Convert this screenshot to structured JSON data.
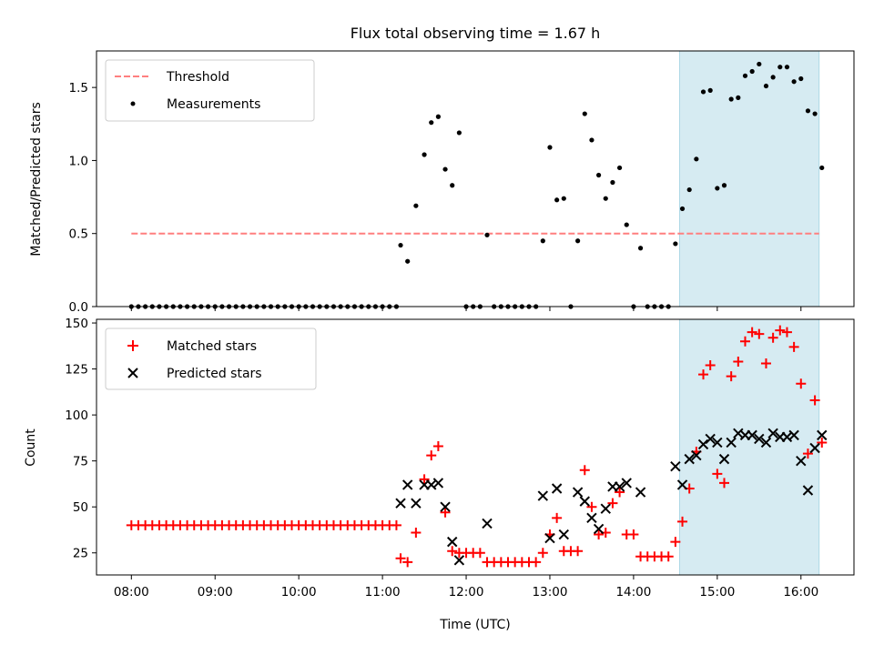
{
  "chart_data": [
    {
      "type": "scatter",
      "title": "Flux total observing time = 1.67 h",
      "ylabel": "Matched/Predicted stars",
      "ylim": [
        0,
        1.75
      ],
      "xlim": [
        "07:35",
        "16:38"
      ],
      "yticks": [
        "0.0",
        "0.5",
        "1.0",
        "1.5"
      ],
      "legend_position": "upper left",
      "highlight_span": {
        "start": "14:33",
        "end": "16:13",
        "color": "#add8e6"
      },
      "threshold": {
        "name": "Threshold",
        "value": 0.5,
        "x_range": [
          "08:00",
          "16:13"
        ],
        "color": "#ff7f7f",
        "style": "dashed"
      },
      "series": [
        {
          "name": "Measurements",
          "color": "#000000",
          "marker": "dot",
          "points": [
            [
              "08:00",
              0
            ],
            [
              "08:05",
              0
            ],
            [
              "08:10",
              0
            ],
            [
              "08:15",
              0
            ],
            [
              "08:20",
              0
            ],
            [
              "08:25",
              0
            ],
            [
              "08:30",
              0
            ],
            [
              "08:35",
              0
            ],
            [
              "08:40",
              0
            ],
            [
              "08:45",
              0
            ],
            [
              "08:50",
              0
            ],
            [
              "08:55",
              0
            ],
            [
              "09:00",
              0
            ],
            [
              "09:05",
              0
            ],
            [
              "09:10",
              0
            ],
            [
              "09:15",
              0
            ],
            [
              "09:20",
              0
            ],
            [
              "09:25",
              0
            ],
            [
              "09:30",
              0
            ],
            [
              "09:35",
              0
            ],
            [
              "09:40",
              0
            ],
            [
              "09:45",
              0
            ],
            [
              "09:50",
              0
            ],
            [
              "09:55",
              0
            ],
            [
              "10:00",
              0
            ],
            [
              "10:05",
              0
            ],
            [
              "10:10",
              0
            ],
            [
              "10:15",
              0
            ],
            [
              "10:20",
              0
            ],
            [
              "10:25",
              0
            ],
            [
              "10:30",
              0
            ],
            [
              "10:35",
              0
            ],
            [
              "10:40",
              0
            ],
            [
              "10:45",
              0
            ],
            [
              "10:50",
              0
            ],
            [
              "10:55",
              0
            ],
            [
              "11:00",
              0
            ],
            [
              "11:05",
              0
            ],
            [
              "11:10",
              0
            ],
            [
              "11:13",
              0.42
            ],
            [
              "11:18",
              0.31
            ],
            [
              "11:24",
              0.69
            ],
            [
              "11:30",
              1.04
            ],
            [
              "11:35",
              1.26
            ],
            [
              "11:40",
              1.3
            ],
            [
              "11:45",
              0.94
            ],
            [
              "11:50",
              0.83
            ],
            [
              "11:55",
              1.19
            ],
            [
              "12:00",
              0
            ],
            [
              "12:05",
              0
            ],
            [
              "12:10",
              0
            ],
            [
              "12:15",
              0.49
            ],
            [
              "12:20",
              0
            ],
            [
              "12:25",
              0
            ],
            [
              "12:30",
              0
            ],
            [
              "12:35",
              0
            ],
            [
              "12:40",
              0
            ],
            [
              "12:45",
              0
            ],
            [
              "12:50",
              0
            ],
            [
              "12:55",
              0.45
            ],
            [
              "13:00",
              1.09
            ],
            [
              "13:05",
              0.73
            ],
            [
              "13:10",
              0.74
            ],
            [
              "13:15",
              0
            ],
            [
              "13:20",
              0.45
            ],
            [
              "13:25",
              1.32
            ],
            [
              "13:30",
              1.14
            ],
            [
              "13:35",
              0.9
            ],
            [
              "13:40",
              0.74
            ],
            [
              "13:45",
              0.85
            ],
            [
              "13:50",
              0.95
            ],
            [
              "13:55",
              0.56
            ],
            [
              "14:00",
              0
            ],
            [
              "14:05",
              0.4
            ],
            [
              "14:10",
              0
            ],
            [
              "14:15",
              0
            ],
            [
              "14:20",
              0
            ],
            [
              "14:25",
              0
            ],
            [
              "14:30",
              0.43
            ],
            [
              "14:35",
              0.67
            ],
            [
              "14:40",
              0.8
            ],
            [
              "14:45",
              1.01
            ],
            [
              "14:50",
              1.47
            ],
            [
              "14:55",
              1.48
            ],
            [
              "15:00",
              0.81
            ],
            [
              "15:05",
              0.83
            ],
            [
              "15:10",
              1.42
            ],
            [
              "15:15",
              1.43
            ],
            [
              "15:20",
              1.58
            ],
            [
              "15:25",
              1.61
            ],
            [
              "15:30",
              1.66
            ],
            [
              "15:35",
              1.51
            ],
            [
              "15:40",
              1.57
            ],
            [
              "15:45",
              1.64
            ],
            [
              "15:50",
              1.64
            ],
            [
              "15:55",
              1.54
            ],
            [
              "16:00",
              1.56
            ],
            [
              "16:05",
              1.34
            ],
            [
              "16:10",
              1.32
            ],
            [
              "16:15",
              0.95
            ]
          ]
        }
      ]
    },
    {
      "type": "scatter",
      "xlabel": "Time (UTC)",
      "ylabel": "Count",
      "ylim": [
        13,
        152
      ],
      "xlim": [
        "07:35",
        "16:38"
      ],
      "xticks": [
        "08:00",
        "09:00",
        "10:00",
        "11:00",
        "12:00",
        "13:00",
        "14:00",
        "15:00",
        "16:00"
      ],
      "yticks": [
        "25",
        "50",
        "75",
        "100",
        "125",
        "150"
      ],
      "legend_position": "upper left",
      "highlight_span": {
        "start": "14:33",
        "end": "16:13",
        "color": "#add8e6"
      },
      "series": [
        {
          "name": "Matched stars",
          "color": "#ff0000",
          "marker": "plus",
          "points": [
            [
              "08:00",
              40
            ],
            [
              "08:05",
              40
            ],
            [
              "08:10",
              40
            ],
            [
              "08:15",
              40
            ],
            [
              "08:20",
              40
            ],
            [
              "08:25",
              40
            ],
            [
              "08:30",
              40
            ],
            [
              "08:35",
              40
            ],
            [
              "08:40",
              40
            ],
            [
              "08:45",
              40
            ],
            [
              "08:50",
              40
            ],
            [
              "08:55",
              40
            ],
            [
              "09:00",
              40
            ],
            [
              "09:05",
              40
            ],
            [
              "09:10",
              40
            ],
            [
              "09:15",
              40
            ],
            [
              "09:20",
              40
            ],
            [
              "09:25",
              40
            ],
            [
              "09:30",
              40
            ],
            [
              "09:35",
              40
            ],
            [
              "09:40",
              40
            ],
            [
              "09:45",
              40
            ],
            [
              "09:50",
              40
            ],
            [
              "09:55",
              40
            ],
            [
              "10:00",
              40
            ],
            [
              "10:05",
              40
            ],
            [
              "10:10",
              40
            ],
            [
              "10:15",
              40
            ],
            [
              "10:20",
              40
            ],
            [
              "10:25",
              40
            ],
            [
              "10:30",
              40
            ],
            [
              "10:35",
              40
            ],
            [
              "10:40",
              40
            ],
            [
              "10:45",
              40
            ],
            [
              "10:50",
              40
            ],
            [
              "10:55",
              40
            ],
            [
              "11:00",
              40
            ],
            [
              "11:05",
              40
            ],
            [
              "11:10",
              40
            ],
            [
              "11:13",
              22
            ],
            [
              "11:18",
              20
            ],
            [
              "11:24",
              36
            ],
            [
              "11:30",
              65
            ],
            [
              "11:35",
              78
            ],
            [
              "11:40",
              83
            ],
            [
              "11:45",
              47
            ],
            [
              "11:50",
              26
            ],
            [
              "11:55",
              25
            ],
            [
              "12:00",
              25
            ],
            [
              "12:05",
              25
            ],
            [
              "12:10",
              25
            ],
            [
              "12:15",
              20
            ],
            [
              "12:20",
              20
            ],
            [
              "12:25",
              20
            ],
            [
              "12:30",
              20
            ],
            [
              "12:35",
              20
            ],
            [
              "12:40",
              20
            ],
            [
              "12:45",
              20
            ],
            [
              "12:50",
              20
            ],
            [
              "12:55",
              25
            ],
            [
              "13:00",
              35
            ],
            [
              "13:05",
              44
            ],
            [
              "13:10",
              26
            ],
            [
              "13:15",
              26
            ],
            [
              "13:20",
              26
            ],
            [
              "13:25",
              70
            ],
            [
              "13:30",
              50
            ],
            [
              "13:35",
              35
            ],
            [
              "13:40",
              36
            ],
            [
              "13:45",
              52
            ],
            [
              "13:50",
              58
            ],
            [
              "13:55",
              35
            ],
            [
              "14:00",
              35
            ],
            [
              "14:05",
              23
            ],
            [
              "14:10",
              23
            ],
            [
              "14:15",
              23
            ],
            [
              "14:20",
              23
            ],
            [
              "14:25",
              23
            ],
            [
              "14:30",
              31
            ],
            [
              "14:35",
              42
            ],
            [
              "14:40",
              60
            ],
            [
              "14:45",
              80
            ],
            [
              "14:50",
              122
            ],
            [
              "14:55",
              127
            ],
            [
              "15:00",
              68
            ],
            [
              "15:05",
              63
            ],
            [
              "15:10",
              121
            ],
            [
              "15:15",
              129
            ],
            [
              "15:20",
              140
            ],
            [
              "15:25",
              145
            ],
            [
              "15:30",
              144
            ],
            [
              "15:35",
              128
            ],
            [
              "15:40",
              142
            ],
            [
              "15:45",
              146
            ],
            [
              "15:50",
              145
            ],
            [
              "15:55",
              137
            ],
            [
              "16:00",
              117
            ],
            [
              "16:05",
              79
            ],
            [
              "16:10",
              108
            ],
            [
              "16:15",
              85
            ]
          ]
        },
        {
          "name": "Predicted stars",
          "color": "#000000",
          "marker": "x",
          "points": [
            [
              "11:13",
              52
            ],
            [
              "11:18",
              62
            ],
            [
              "11:24",
              52
            ],
            [
              "11:30",
              62
            ],
            [
              "11:35",
              62
            ],
            [
              "11:40",
              63
            ],
            [
              "11:45",
              50
            ],
            [
              "11:50",
              31
            ],
            [
              "11:55",
              21
            ],
            [
              "12:15",
              41
            ],
            [
              "12:55",
              56
            ],
            [
              "13:00",
              33
            ],
            [
              "13:05",
              60
            ],
            [
              "13:10",
              35
            ],
            [
              "13:20",
              58
            ],
            [
              "13:25",
              53
            ],
            [
              "13:30",
              44
            ],
            [
              "13:35",
              38
            ],
            [
              "13:40",
              49
            ],
            [
              "13:45",
              61
            ],
            [
              "13:50",
              61
            ],
            [
              "13:55",
              63
            ],
            [
              "14:05",
              58
            ],
            [
              "14:30",
              72
            ],
            [
              "14:35",
              62
            ],
            [
              "14:40",
              76
            ],
            [
              "14:45",
              78
            ],
            [
              "14:50",
              84
            ],
            [
              "14:55",
              87
            ],
            [
              "15:00",
              85
            ],
            [
              "15:05",
              76
            ],
            [
              "15:10",
              85
            ],
            [
              "15:15",
              90
            ],
            [
              "15:20",
              89
            ],
            [
              "15:25",
              89
            ],
            [
              "15:30",
              87
            ],
            [
              "15:35",
              85
            ],
            [
              "15:40",
              90
            ],
            [
              "15:45",
              88
            ],
            [
              "15:50",
              88
            ],
            [
              "15:55",
              89
            ],
            [
              "16:00",
              75
            ],
            [
              "16:05",
              59
            ],
            [
              "16:10",
              82
            ],
            [
              "16:15",
              89
            ]
          ]
        }
      ]
    }
  ]
}
